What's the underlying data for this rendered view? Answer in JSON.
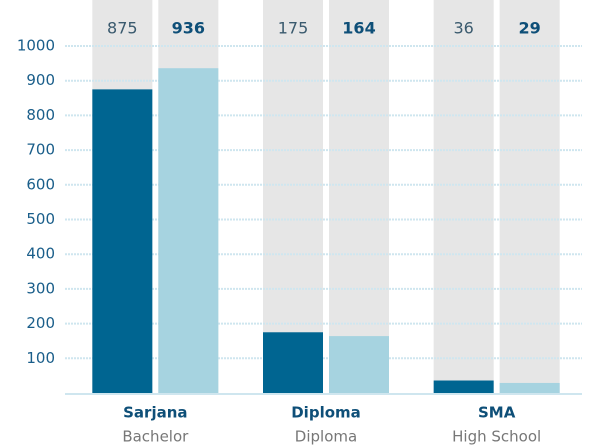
{
  "chart_data": {
    "type": "bar",
    "categories": [
      "Sarjana",
      "Diploma",
      "SMA"
    ],
    "category_sublabels": [
      "Bachelor",
      "Diploma",
      "High School"
    ],
    "series": [
      {
        "color": "#006591",
        "values": [
          875,
          175,
          36
        ]
      },
      {
        "color": "#a6d3e0",
        "values": [
          936,
          164,
          29
        ]
      }
    ],
    "ylim": [
      0,
      1000
    ],
    "yticks": [
      100,
      200,
      300,
      400,
      500,
      600,
      700,
      800,
      900,
      1000
    ],
    "grid": true
  }
}
